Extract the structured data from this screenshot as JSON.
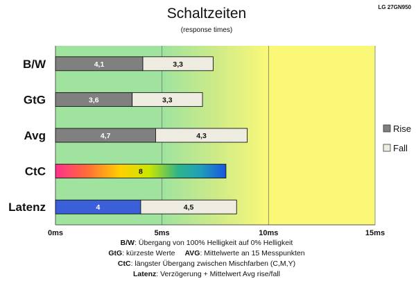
{
  "header": {
    "title": "Schaltzeiten",
    "subtitle": "(response times)",
    "model": "LG 27GN950"
  },
  "legend": {
    "items": [
      {
        "label": "Rise",
        "color": "#808080"
      },
      {
        "label": "Fall",
        "color": "#eeece1"
      }
    ]
  },
  "chart_data": {
    "type": "bar",
    "orientation": "horizontal",
    "stacked": true,
    "categories": [
      "B/W",
      "GtG",
      "Avg",
      "CtC",
      "Latenz"
    ],
    "series": [
      {
        "name": "Rise",
        "values": [
          4.1,
          3.6,
          4.7,
          null,
          null
        ],
        "color": "#808080"
      },
      {
        "name": "Fall",
        "values": [
          3.3,
          3.3,
          4.3,
          null,
          4.5
        ],
        "color": "#eeece1"
      }
    ],
    "single_values": [
      {
        "category": "CtC",
        "value": 8,
        "fill": "rainbow gradient"
      },
      {
        "category": "Latenz",
        "value": 4,
        "color": "#3a5fd8"
      }
    ],
    "value_labels": [
      [
        "4,1",
        "3,3"
      ],
      [
        "3,6",
        "3,3"
      ],
      [
        "4,7",
        "4,3"
      ],
      [
        "8"
      ],
      [
        "4",
        "4,5"
      ]
    ],
    "xlim": [
      0,
      15
    ],
    "xticks": [
      0,
      5,
      10,
      15
    ],
    "xtick_labels": [
      "0ms",
      "5ms",
      "10ms",
      "15ms"
    ],
    "background_zones": "green (0–5ms) → yellow-green gradient (5–10ms) → yellow (10–15ms)",
    "grid": true,
    "legend_position": "right"
  },
  "footnotes": [
    {
      "key": "B/W",
      "text": ":  Übergang von 100% Helligkeit auf 0% Helligkeit"
    },
    {
      "key": "GtG",
      "text": ": kürzeste  Werte",
      "key2": "AVG",
      "text2": ": Mittelwerte  an 15 Messpunkten"
    },
    {
      "key": "CtC",
      "text": ": längster Übergang  zwischen Mischfarben  (C,M,Y)"
    },
    {
      "key": "Latenz",
      "text": ": Verzögerung  + Mittelwert  Avg rise/fall"
    }
  ]
}
